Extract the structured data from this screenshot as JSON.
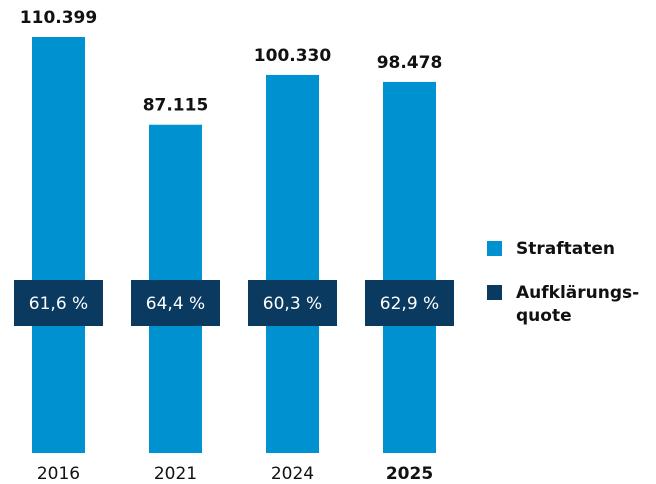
{
  "chart_data": {
    "type": "bar",
    "categories": [
      "2016",
      "2021",
      "2024",
      "2025"
    ],
    "highlight_category": 3,
    "series": [
      {
        "name": "Straftaten",
        "color": "#0091d1",
        "values": [
          110399,
          87115,
          100330,
          98478
        ],
        "value_labels": [
          "110.399",
          "87.115",
          "100.330",
          "98.478"
        ]
      },
      {
        "name": "Aufklärungs-quote",
        "color": "#0b3a60",
        "values": [
          61.6,
          64.4,
          60.3,
          62.9
        ],
        "value_labels": [
          "61,6 %",
          "64,4 %",
          "60,3 %",
          "62,9 %"
        ]
      }
    ]
  }
}
